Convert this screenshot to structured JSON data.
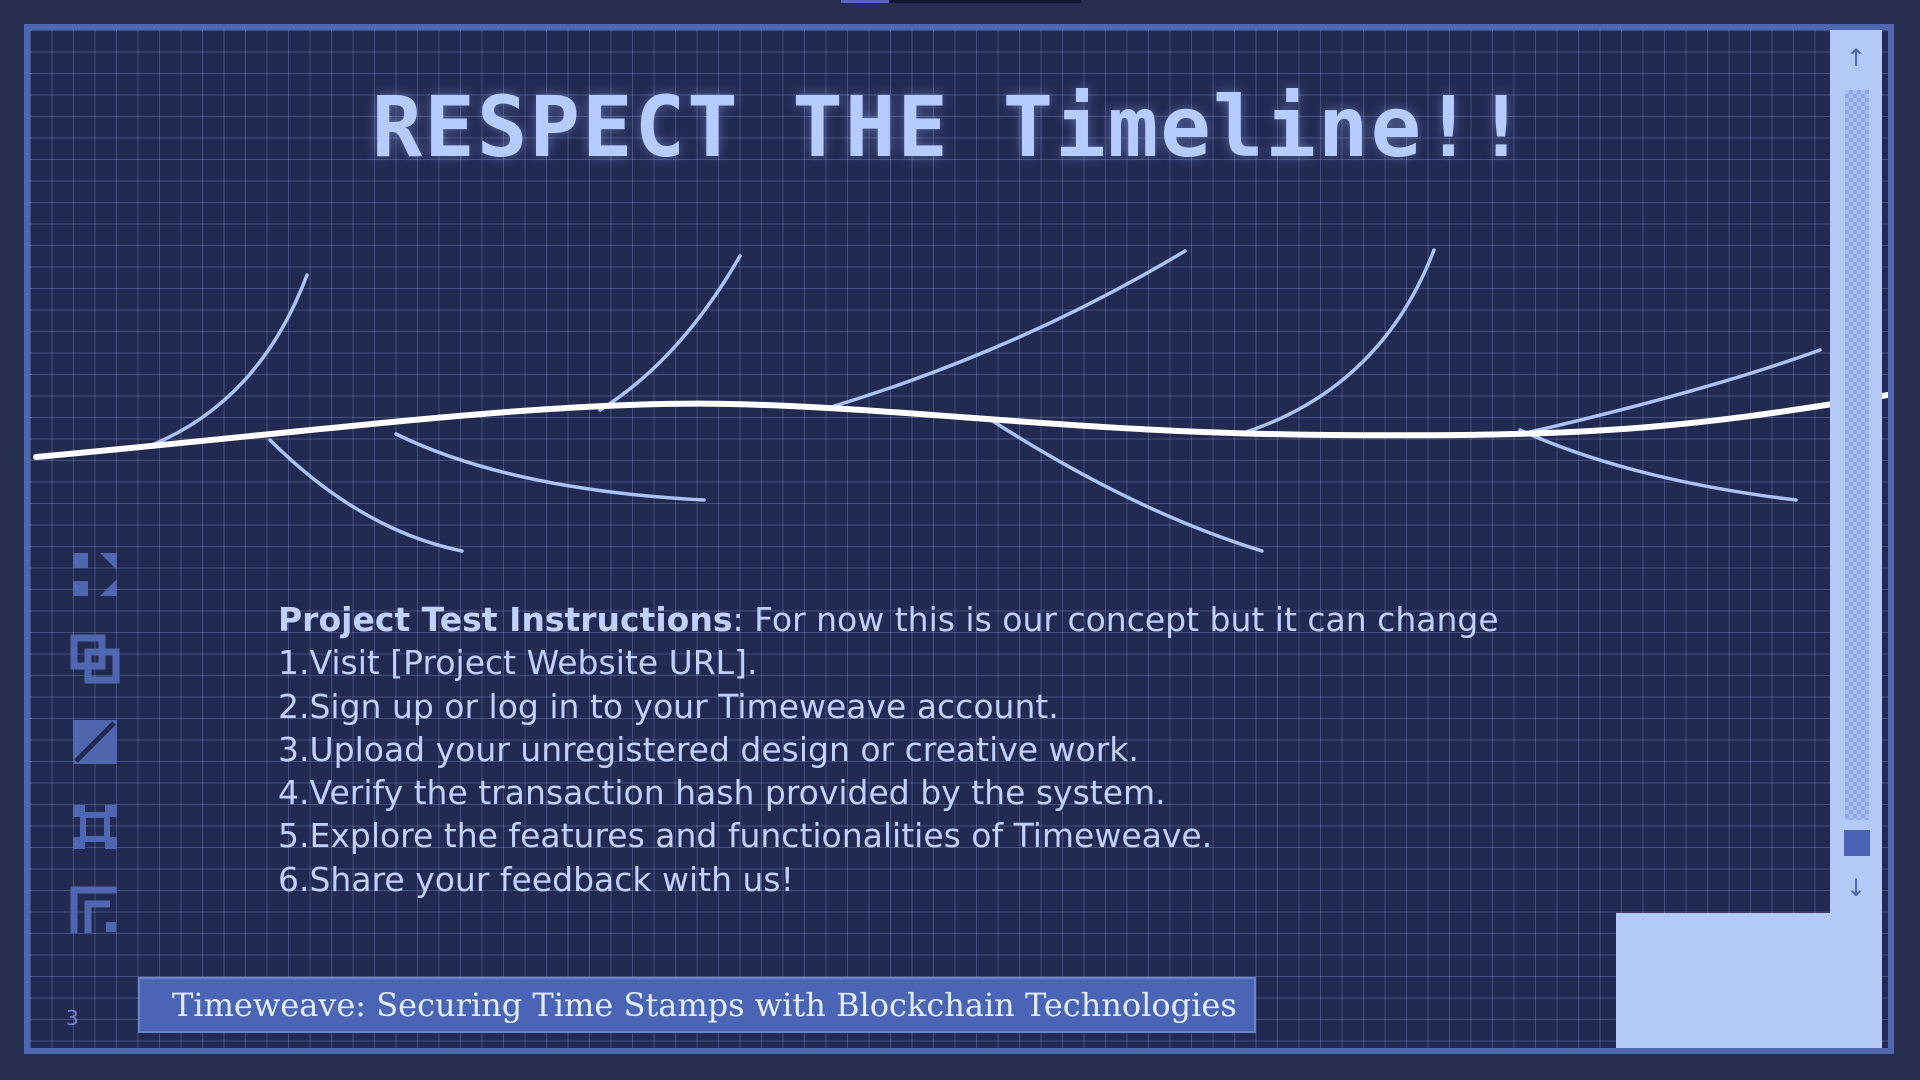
{
  "slide": {
    "title": "RESPECT THE Timeline!!",
    "page_number": "3",
    "footer": "Timeweave: Securing Time Stamps with Blockchain Technologies"
  },
  "instructions": {
    "heading": "Project Test Instructions",
    "intro": ": For now this is our concept but it can change",
    "steps": [
      "1.Visit [Project Website URL].",
      "2.Sign up or log in to your Timeweave account.",
      "3.Upload your unregistered design or creative work.",
      "4.Verify the transaction hash provided by the system.",
      "5.Explore the features and functionalities of Timeweave.",
      "6.Share your feedback with us!"
    ]
  },
  "scrollbar": {
    "up_icon": "arrow-up-icon",
    "down_icon": "arrow-down-icon"
  },
  "theme": {
    "frame_border": "#4f66b0",
    "background": "#232a52",
    "title_color": "#b6ccff",
    "text_color": "#c0d1ff",
    "banner_color": "#4a65b4",
    "panel_color": "#b3caf7"
  }
}
